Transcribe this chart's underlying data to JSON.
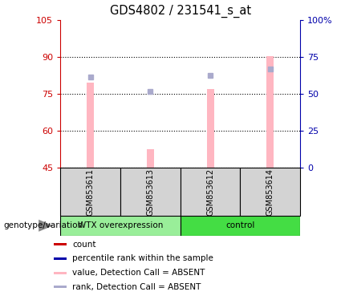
{
  "title": "GDS4802 / 231541_s_at",
  "samples": [
    "GSM853611",
    "GSM853613",
    "GSM853612",
    "GSM853614"
  ],
  "ylim_left": [
    45,
    105
  ],
  "ylim_right": [
    0,
    100
  ],
  "yticks_left": [
    45,
    60,
    75,
    90,
    105
  ],
  "yticks_right": [
    0,
    25,
    50,
    75,
    100
  ],
  "ytick_labels_left": [
    "45",
    "60",
    "75",
    "90",
    "105"
  ],
  "ytick_labels_right": [
    "0",
    "25",
    "50",
    "75",
    "100%"
  ],
  "bar_values": [
    79.5,
    52.5,
    77.0,
    90.5
  ],
  "rank_values": [
    82.0,
    76.0,
    82.5,
    85.0
  ],
  "bar_color_absent": "#FFB6C1",
  "rank_color_absent": "#AAAACC",
  "bar_width": 0.12,
  "left_axis_color": "#CC0000",
  "right_axis_color": "#0000AA",
  "wtx_color": "#99EE99",
  "ctrl_color": "#44DD44",
  "gray_box": "#D3D3D3",
  "legend_items": [
    {
      "color": "#CC0000",
      "label": "count"
    },
    {
      "color": "#0000AA",
      "label": "percentile rank within the sample"
    },
    {
      "color": "#FFB6C1",
      "label": "value, Detection Call = ABSENT"
    },
    {
      "color": "#AAAACC",
      "label": "rank, Detection Call = ABSENT"
    }
  ],
  "group_label": "genotype/variation"
}
